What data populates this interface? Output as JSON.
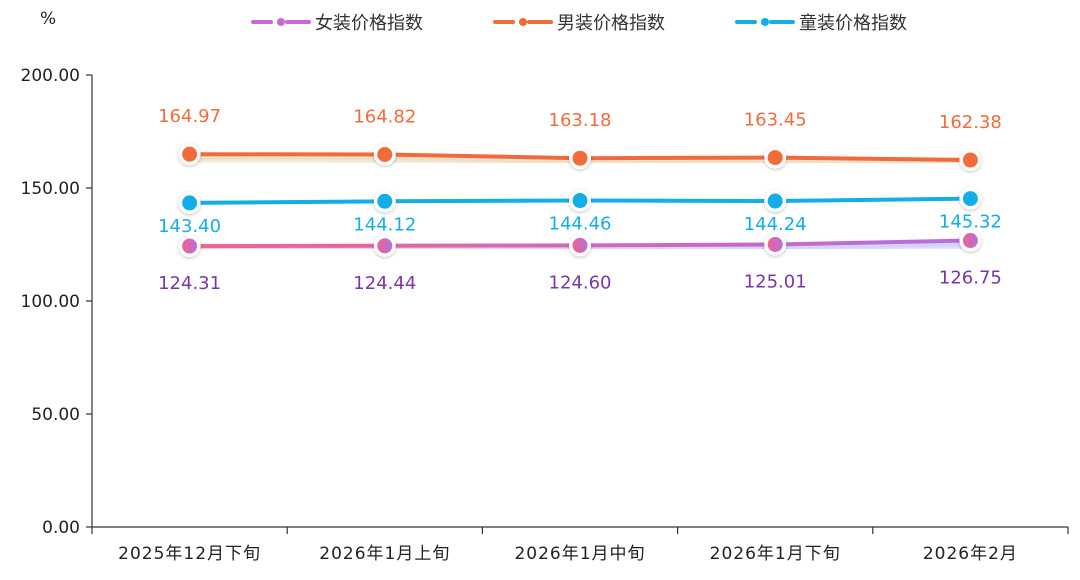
{
  "chart_data": {
    "type": "line",
    "y_unit": "%",
    "categories": [
      "2025年12月下旬",
      "2026年1月上旬",
      "2026年1月中旬",
      "2026年1月下旬",
      "2026年2月"
    ],
    "ylim": [
      0,
      200
    ],
    "y_ticks": [
      "0.00",
      "50.00",
      "100.00",
      "150.00",
      "200.00"
    ],
    "grid": false,
    "legend_position": "top",
    "series": [
      {
        "name": "女装价格指数",
        "color": "#c86ad6",
        "label_color": "#7b35a8",
        "label_pos": "below",
        "values": [
          124.31,
          124.44,
          124.6,
          125.01,
          126.75
        ],
        "labels": [
          "124.31",
          "124.44",
          "124.60",
          "125.01",
          "126.75"
        ]
      },
      {
        "name": "男装价格指数",
        "color": "#f26b3a",
        "label_color": "#f26b3a",
        "label_pos": "above",
        "values": [
          164.97,
          164.82,
          163.18,
          163.45,
          162.38
        ],
        "labels": [
          "164.97",
          "164.82",
          "163.18",
          "163.45",
          "162.38"
        ]
      },
      {
        "name": "童装价格指数",
        "color": "#13aee8",
        "label_color": "#13aee8",
        "label_pos": "below",
        "values": [
          143.4,
          144.12,
          144.46,
          144.24,
          145.32
        ],
        "labels": [
          "143.40",
          "144.12",
          "144.46",
          "144.24",
          "145.32"
        ]
      }
    ]
  }
}
